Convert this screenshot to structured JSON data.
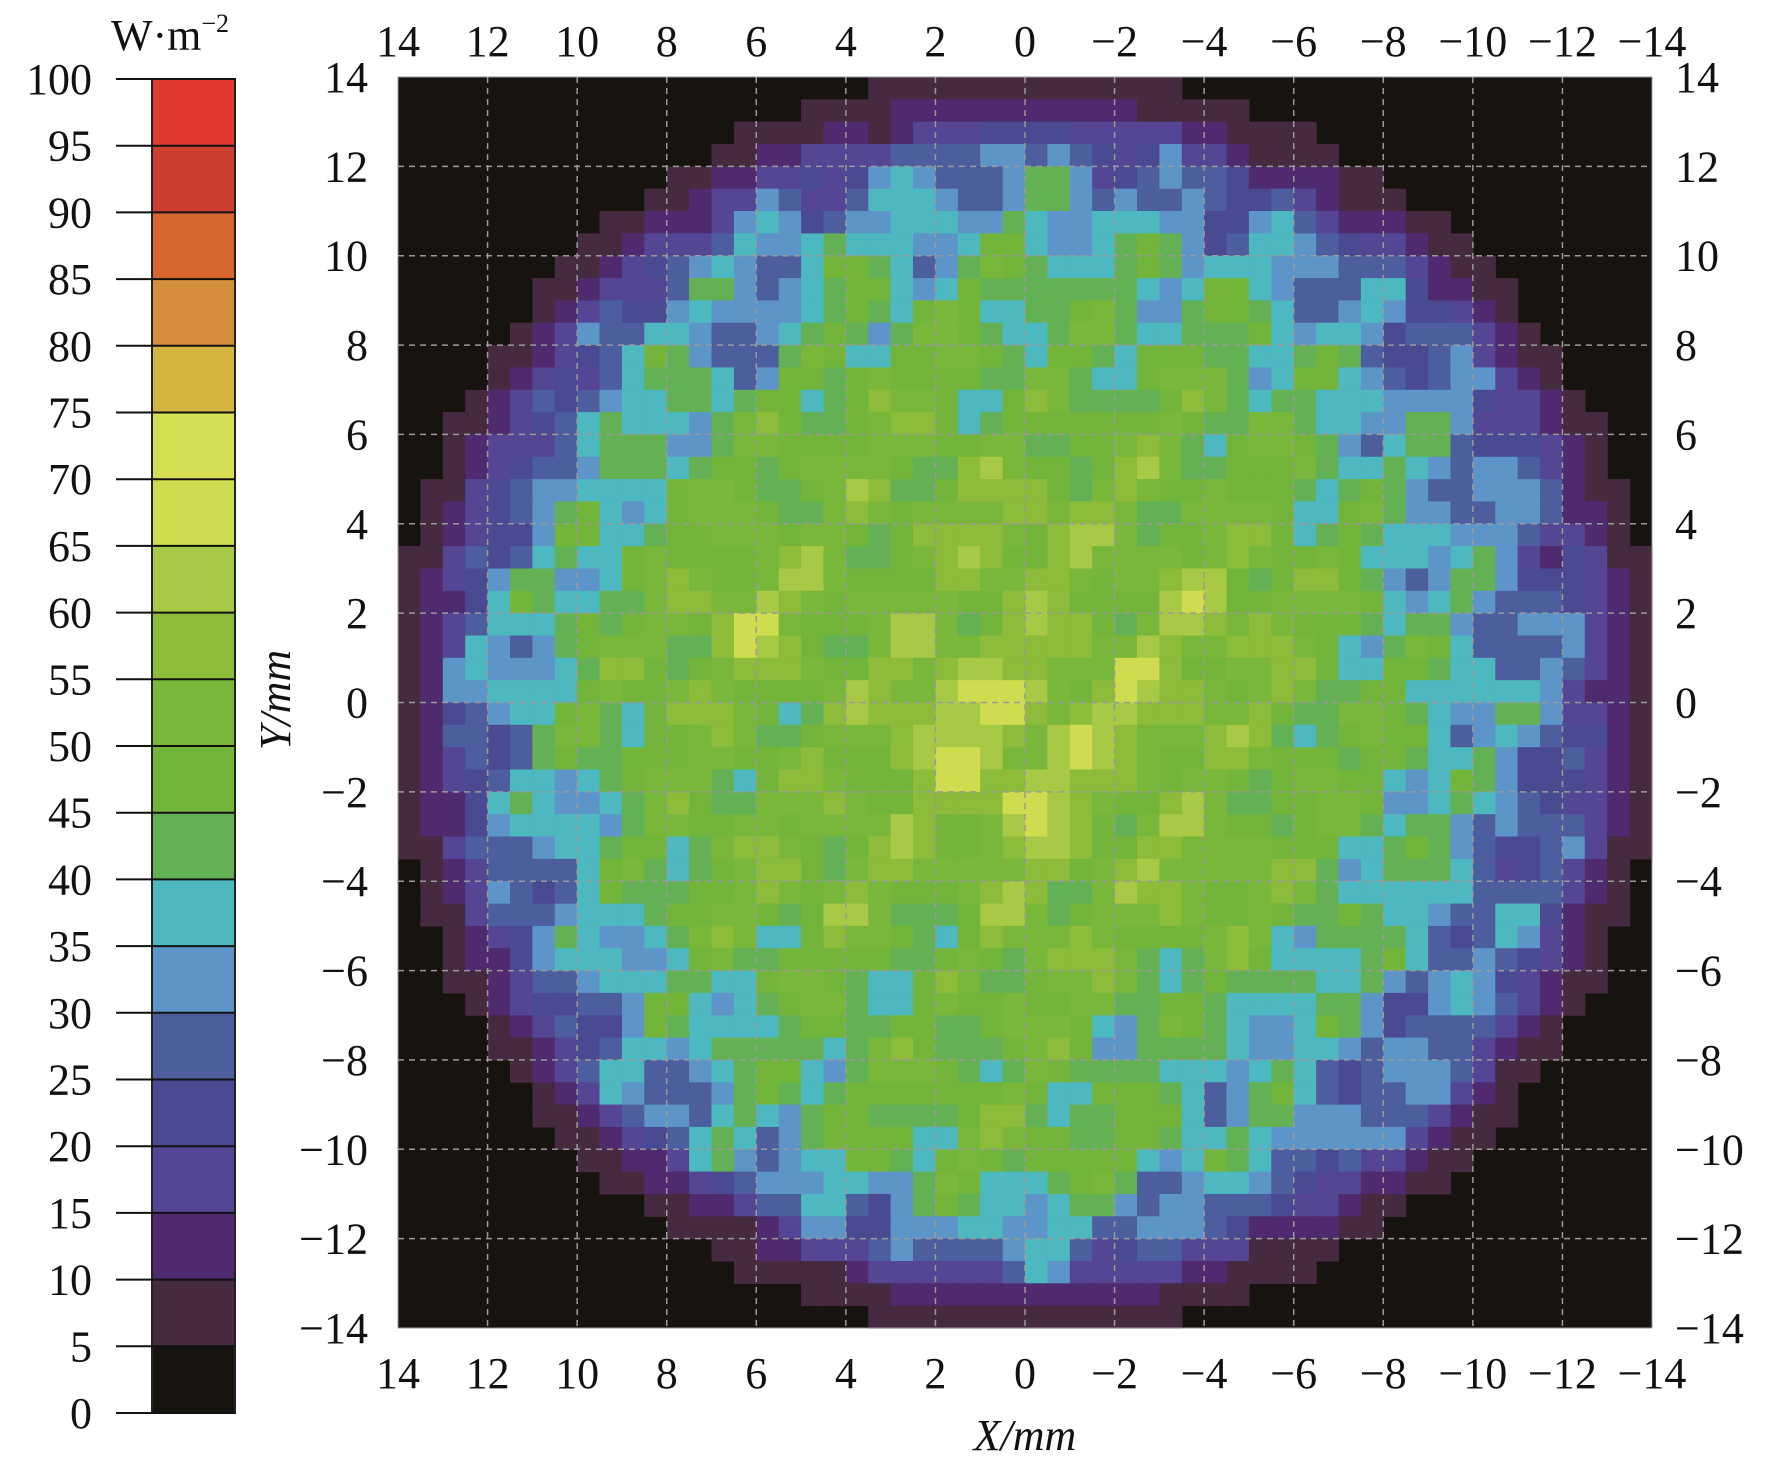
{
  "chart_data": {
    "type": "heatmap",
    "title": "",
    "xlabel": "X/mm",
    "ylabel": "Y/mm",
    "colorbar_unit": "W·m",
    "colorbar_unit_exp": "−2",
    "xlim": [
      14,
      -14
    ],
    "ylim": [
      -14,
      14
    ],
    "x_ticks": [
      "14",
      "12",
      "10",
      "8",
      "6",
      "4",
      "2",
      "0",
      "−2",
      "−4",
      "−6",
      "−8",
      "−10",
      "−12",
      "−14"
    ],
    "y_ticks": [
      "14",
      "12",
      "10",
      "8",
      "6",
      "4",
      "2",
      "0",
      "−2",
      "−4",
      "−6",
      "−8",
      "−10",
      "−12",
      "−14"
    ],
    "grid": true,
    "colorbar_ticks": [
      "0",
      "5",
      "10",
      "15",
      "20",
      "25",
      "30",
      "35",
      "40",
      "45",
      "50",
      "55",
      "60",
      "65",
      "70",
      "75",
      "80",
      "85",
      "90",
      "95",
      "100"
    ],
    "colorbar_colors": [
      "#17130f",
      "#452a40",
      "#4f2a6e",
      "#544694",
      "#4a4a92",
      "#4c5e9e",
      "#5d95c8",
      "#4db8bf",
      "#64b155",
      "#73b53a",
      "#78b73a",
      "#8dbb3a",
      "#a8c945",
      "#cfdc4f",
      "#d6df52",
      "#d4b43e",
      "#d58e3a",
      "#d5662f",
      "#cc3e2f",
      "#e13a30"
    ],
    "colorbar_range": [
      0,
      100
    ],
    "grid_x": [
      14,
      12,
      10,
      8,
      6,
      4,
      2,
      0,
      -2,
      -4,
      -6,
      -8,
      -10,
      -12,
      -14
    ],
    "grid_y": [
      14,
      12,
      10,
      8,
      6,
      4,
      2,
      0,
      -2,
      -4,
      -6,
      -8,
      -10,
      -12,
      -14
    ],
    "values_approx": [
      [
        0,
        0,
        0,
        0,
        0,
        8,
        12,
        15,
        12,
        8,
        0,
        0,
        0,
        0,
        0
      ],
      [
        0,
        0,
        0,
        0,
        15,
        22,
        30,
        32,
        28,
        22,
        15,
        0,
        0,
        0,
        0
      ],
      [
        0,
        0,
        15,
        25,
        35,
        40,
        38,
        42,
        40,
        38,
        32,
        25,
        15,
        0,
        0
      ],
      [
        0,
        15,
        28,
        38,
        30,
        45,
        48,
        45,
        42,
        45,
        40,
        30,
        25,
        15,
        0
      ],
      [
        0,
        20,
        32,
        40,
        48,
        52,
        50,
        45,
        50,
        48,
        45,
        38,
        30,
        20,
        0
      ],
      [
        10,
        25,
        38,
        45,
        50,
        48,
        52,
        60,
        52,
        50,
        48,
        40,
        32,
        22,
        10
      ],
      [
        15,
        30,
        42,
        50,
        62,
        50,
        52,
        55,
        50,
        60,
        52,
        42,
        35,
        25,
        15
      ],
      [
        18,
        32,
        45,
        52,
        50,
        48,
        68,
        58,
        62,
        55,
        50,
        45,
        38,
        28,
        18
      ],
      [
        15,
        28,
        40,
        48,
        50,
        52,
        55,
        65,
        55,
        50,
        48,
        45,
        35,
        25,
        15
      ],
      [
        10,
        25,
        35,
        45,
        52,
        55,
        50,
        55,
        52,
        58,
        48,
        40,
        32,
        22,
        10
      ],
      [
        0,
        20,
        32,
        42,
        45,
        48,
        42,
        55,
        50,
        45,
        42,
        38,
        30,
        20,
        0
      ],
      [
        0,
        15,
        25,
        35,
        40,
        45,
        48,
        45,
        42,
        38,
        35,
        30,
        25,
        15,
        0
      ],
      [
        0,
        0,
        15,
        28,
        38,
        42,
        48,
        50,
        45,
        40,
        35,
        28,
        15,
        0,
        0
      ],
      [
        0,
        0,
        0,
        0,
        15,
        25,
        32,
        35,
        30,
        25,
        15,
        0,
        0,
        0,
        0
      ],
      [
        0,
        0,
        0,
        0,
        0,
        8,
        12,
        15,
        12,
        8,
        0,
        0,
        0,
        0,
        0
      ]
    ],
    "beam_radius_mm": 14
  }
}
